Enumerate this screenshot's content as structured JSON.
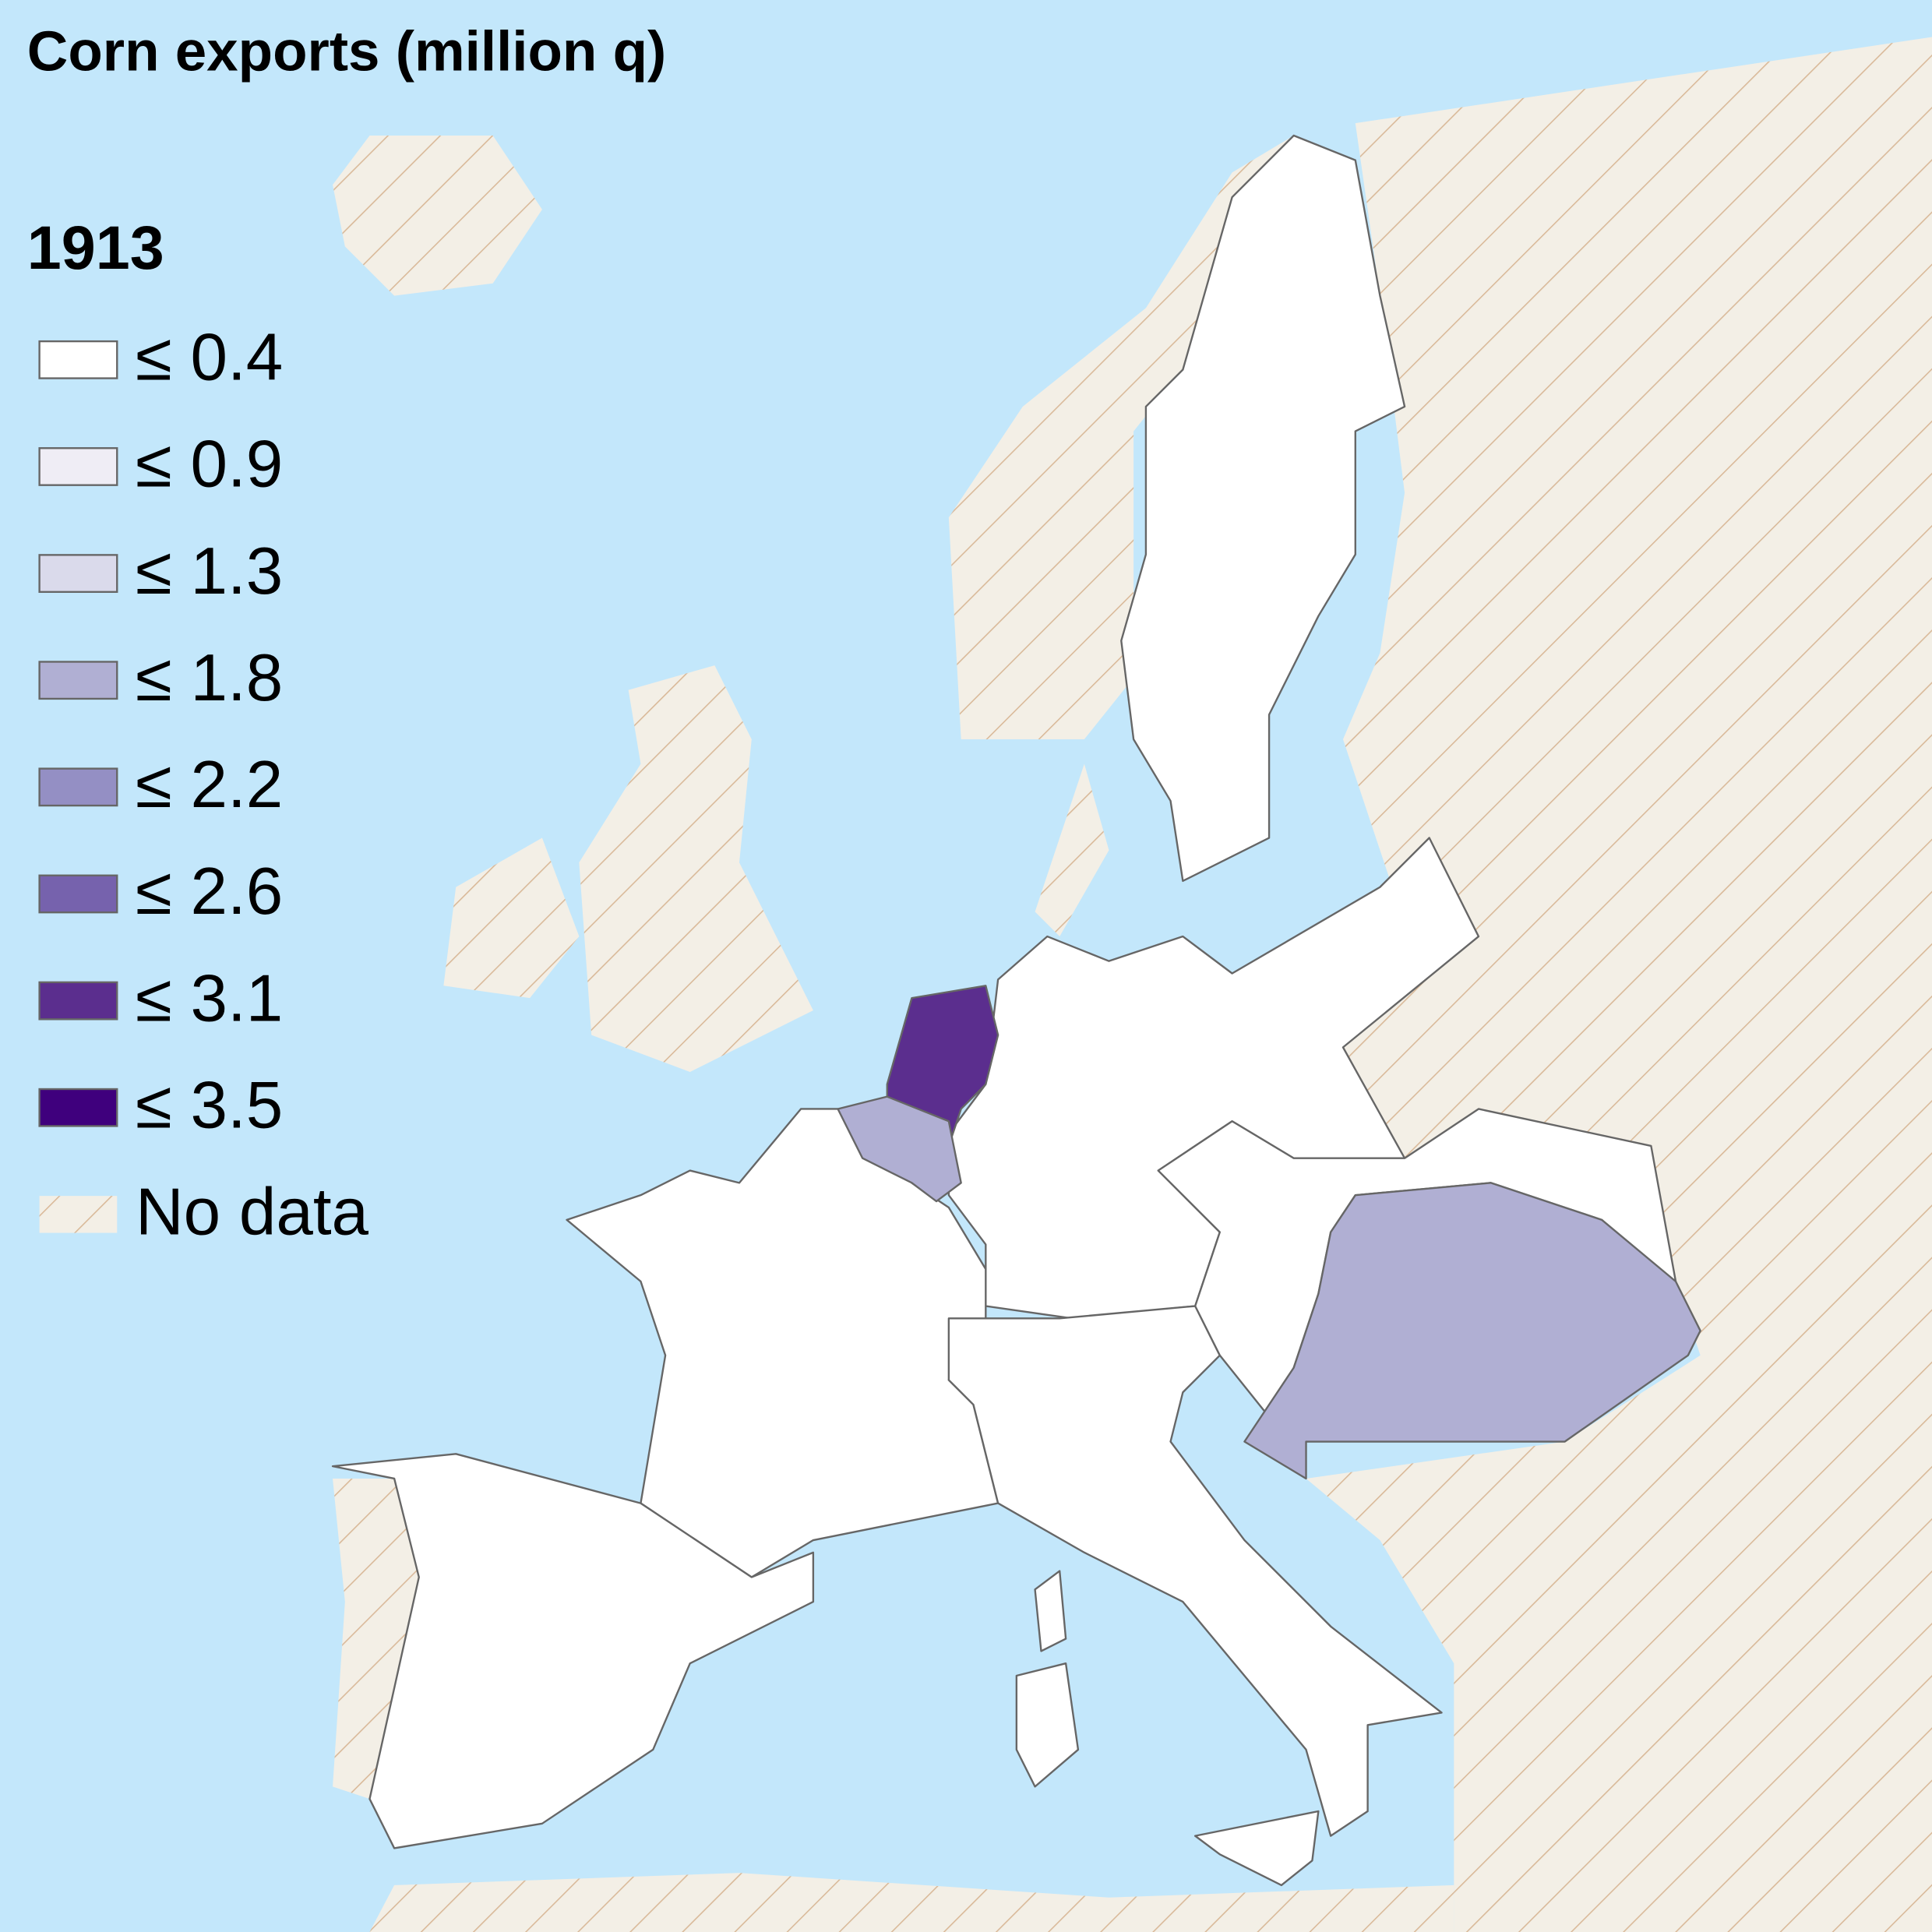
{
  "title": "Corn exports (million q)",
  "legend": {
    "year": "1913",
    "items": [
      {
        "label": "≤ 0.4",
        "color": "#ffffff"
      },
      {
        "label": "≤ 0.9",
        "color": "#efedf5"
      },
      {
        "label": "≤ 1.3",
        "color": "#dadaeb"
      },
      {
        "label": "≤ 1.8",
        "color": "#b0afd3"
      },
      {
        "label": "≤ 2.2",
        "color": "#948fc4"
      },
      {
        "label": "≤ 2.6",
        "color": "#7662ad"
      },
      {
        "label": "≤ 3.1",
        "color": "#5b2e8e"
      },
      {
        "label": "≤ 3.5",
        "color": "#3f007d"
      }
    ],
    "no_data": "No data"
  }
}
